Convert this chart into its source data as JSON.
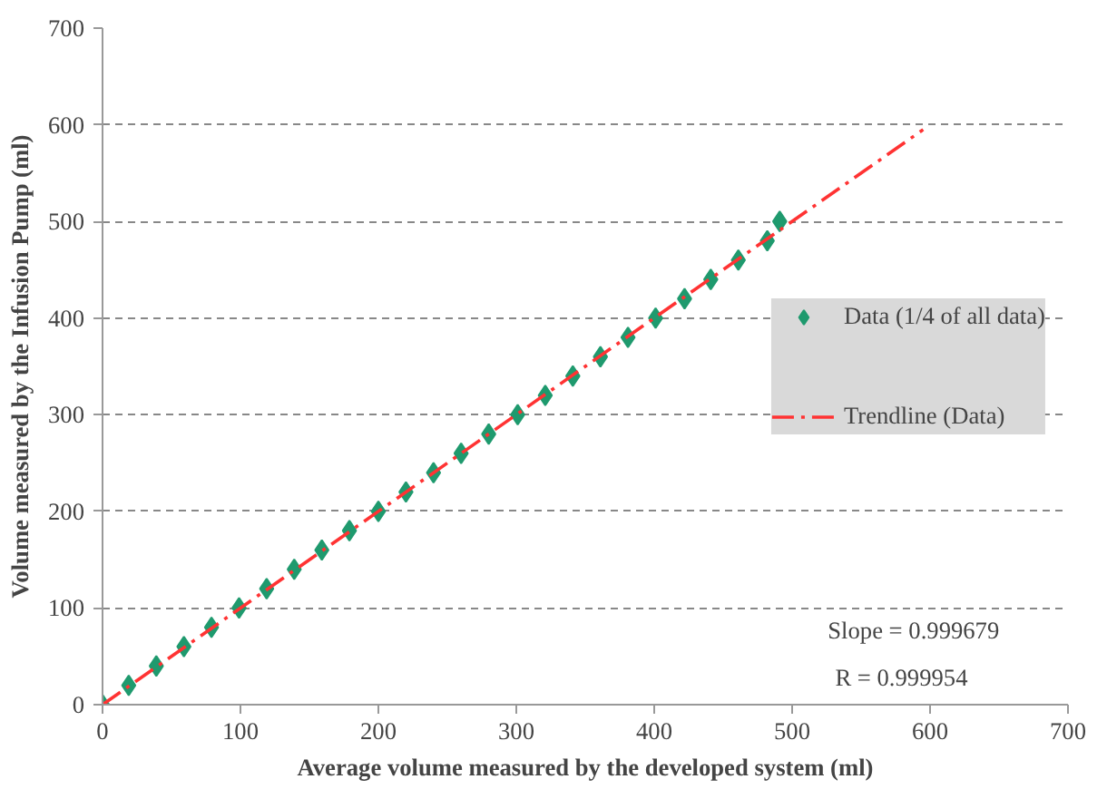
{
  "chart_data": {
    "type": "scatter",
    "xlabel": "Average volume measured by the developed system (ml)",
    "ylabel": "Volume measured by the Infusion Pump (ml)",
    "xlim": [
      0,
      700
    ],
    "ylim": [
      0,
      700
    ],
    "xticks": [
      0,
      100,
      200,
      300,
      400,
      500,
      600,
      700
    ],
    "yticks": [
      0,
      100,
      200,
      300,
      400,
      500,
      600,
      700
    ],
    "grid": "y",
    "legend": "right",
    "marker": "diamond",
    "series": [
      {
        "name": "Data (1/4 of all data)",
        "color": "#1f9a6e",
        "x": [
          0,
          19,
          39,
          59,
          79,
          99,
          119,
          139,
          159,
          179,
          200,
          220,
          240,
          260,
          280,
          301,
          321,
          341,
          361,
          381,
          401,
          422,
          441,
          461,
          482,
          491
        ],
        "values": [
          0,
          20,
          40,
          60,
          80,
          100,
          120,
          140,
          160,
          180,
          200,
          220,
          240,
          260,
          280,
          300,
          320,
          340,
          360,
          380,
          400,
          420,
          440,
          460,
          480,
          500
        ]
      },
      {
        "name": "Trendline (Data)",
        "type": "line",
        "color": "#ff3333",
        "line_style": "dashdot",
        "marker": "none",
        "x": [
          0,
          595
        ],
        "values": [
          0,
          595
        ]
      }
    ],
    "annotations": [
      {
        "text": "Slope = 0.999679"
      },
      {
        "text": "R     = 0.999954"
      }
    ]
  }
}
